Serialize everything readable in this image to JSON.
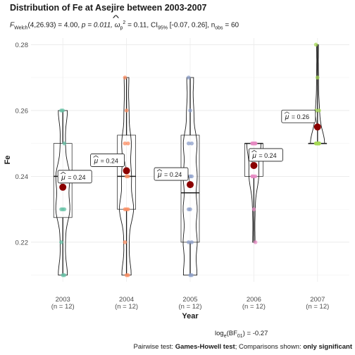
{
  "chart_data": {
    "type": "box",
    "title": "Distribution of Fe at Asejire between 2003-2007",
    "subtitle": {
      "f_label": "F",
      "f_sub": "Welch",
      "f_args": "(4,26.93) = 4.00, ",
      "p_text": "p = 0.011, ",
      "omega": "ω",
      "omega_sub": "p",
      "omega_sup": "2",
      "omega_val": " = 0.11, CI",
      "ci_sub": "95%",
      "ci_text": " [-0.07, 0.26], n",
      "n_sub": "obs",
      "n_text": " = 60"
    },
    "xlabel": "Year",
    "ylabel": "Fe",
    "ylim": [
      0.208,
      0.282
    ],
    "yticks": [
      "0.22",
      "0.24",
      "0.26",
      "0.28"
    ],
    "categories": [
      "2003",
      "2004",
      "2005",
      "2006",
      "2007"
    ],
    "n_labels": [
      "(n = 12)",
      "(n = 12)",
      "(n = 12)",
      "(n = 12)",
      "(n = 12)"
    ],
    "point_colors": [
      "#66c2a5",
      "#fc8d62",
      "#8da0cb",
      "#e78ac3",
      "#a6d854"
    ],
    "mean_color": "#8b0000",
    "boxes": [
      {
        "q1": 0.2275,
        "median": 0.24,
        "q3": 0.25,
        "min": 0.21,
        "max": 0.26
      },
      {
        "q1": 0.23,
        "median": 0.24,
        "q3": 0.2525,
        "min": 0.21,
        "max": 0.27
      },
      {
        "q1": 0.22,
        "median": 0.235,
        "q3": 0.2525,
        "min": 0.21,
        "max": 0.27
      },
      {
        "q1": 0.24,
        "median": 0.25,
        "q3": 0.25,
        "min": 0.22,
        "max": 0.25
      },
      {
        "q1": 0.25,
        "median": 0.25,
        "q3": 0.25,
        "min": 0.25,
        "max": 0.28
      }
    ],
    "points": [
      [
        0.26,
        0.26,
        0.25,
        0.24,
        0.24,
        0.24,
        0.23,
        0.23,
        0.23,
        0.22,
        0.21,
        0.21
      ],
      [
        0.27,
        0.26,
        0.25,
        0.25,
        0.24,
        0.24,
        0.23,
        0.23,
        0.23,
        0.22,
        0.21,
        0.21
      ],
      [
        0.27,
        0.26,
        0.25,
        0.25,
        0.24,
        0.24,
        0.23,
        0.23,
        0.22,
        0.22,
        0.21,
        0.21
      ],
      [
        0.25,
        0.25,
        0.25,
        0.25,
        0.25,
        0.25,
        0.24,
        0.24,
        0.24,
        0.24,
        0.23,
        0.22
      ],
      [
        0.28,
        0.27,
        0.26,
        0.26,
        0.25,
        0.25,
        0.25,
        0.25,
        0.25,
        0.25,
        0.25,
        0.25
      ]
    ],
    "means": [
      0.2367,
      0.2417,
      0.2375,
      0.2433,
      0.255
    ],
    "mean_labels": [
      "= 0.24",
      "= 0.24",
      "= 0.24",
      "= 0.24",
      "= 0.26"
    ],
    "mu_symbol": "μ",
    "bf_caption": {
      "prefix": "log",
      "sub": "e",
      "mid": "(BF",
      "sub2": "01",
      "suffix": ") = -0.27"
    },
    "pairwise_caption": {
      "prefix": "Pairwise test: ",
      "test": "Games-Howell test",
      "mid": "; Comparisons shown: ",
      "shown": "only significant"
    },
    "grid": true
  }
}
